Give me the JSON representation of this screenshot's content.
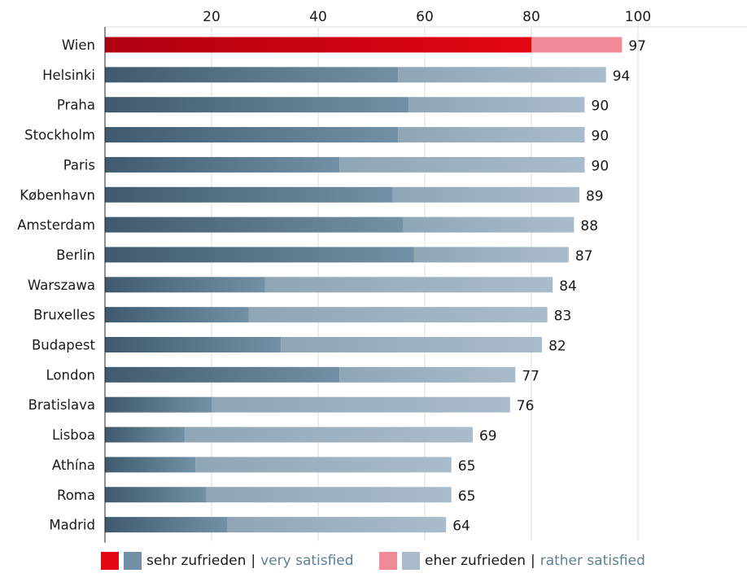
{
  "chart_data": {
    "type": "bar",
    "orientation": "horizontal",
    "stacked": true,
    "x_ticks": [
      20,
      40,
      60,
      80,
      100
    ],
    "xlim": [
      0,
      120
    ],
    "grid": true,
    "categories": [
      "Wien",
      "Helsinki",
      "Praha",
      "Stockholm",
      "Paris",
      "København",
      "Amsterdam",
      "Berlin",
      "Warszawa",
      "Bruxelles",
      "Budapest",
      "London",
      "Bratislava",
      "Lisboa",
      "Athína",
      "Roma",
      "Madrid"
    ],
    "totals": [
      97,
      94,
      90,
      90,
      90,
      89,
      88,
      87,
      84,
      83,
      82,
      77,
      76,
      69,
      65,
      65,
      64
    ],
    "series": [
      {
        "name": "sehr zufrieden | very satisfied",
        "values": [
          80,
          55,
          57,
          55,
          44,
          54,
          56,
          58,
          30,
          27,
          33,
          44,
          20,
          15,
          17,
          19,
          23
        ]
      },
      {
        "name": "eher zufrieden | rather satisfied",
        "values": [
          17,
          39,
          33,
          35,
          46,
          35,
          32,
          29,
          54,
          56,
          49,
          33,
          56,
          54,
          48,
          46,
          41
        ]
      }
    ],
    "highlight_category": "Wien",
    "legend_position": "bottom"
  },
  "colors": {
    "very_dark": "#3f5a6e",
    "very_light": "#7391a6",
    "rather_dark": "#8fa6b7",
    "rather_light": "#a9bccb",
    "hl_very_dark": "#b00010",
    "hl_very_light": "#e30613",
    "hl_rather": "#f08a96",
    "grid": "#dddddd"
  },
  "legend": {
    "very": {
      "de": "sehr zufrieden",
      "sep": "|",
      "en": "very satisfied"
    },
    "rather": {
      "de": "eher zufrieden",
      "sep": "|",
      "en": "rather satisfied"
    }
  }
}
